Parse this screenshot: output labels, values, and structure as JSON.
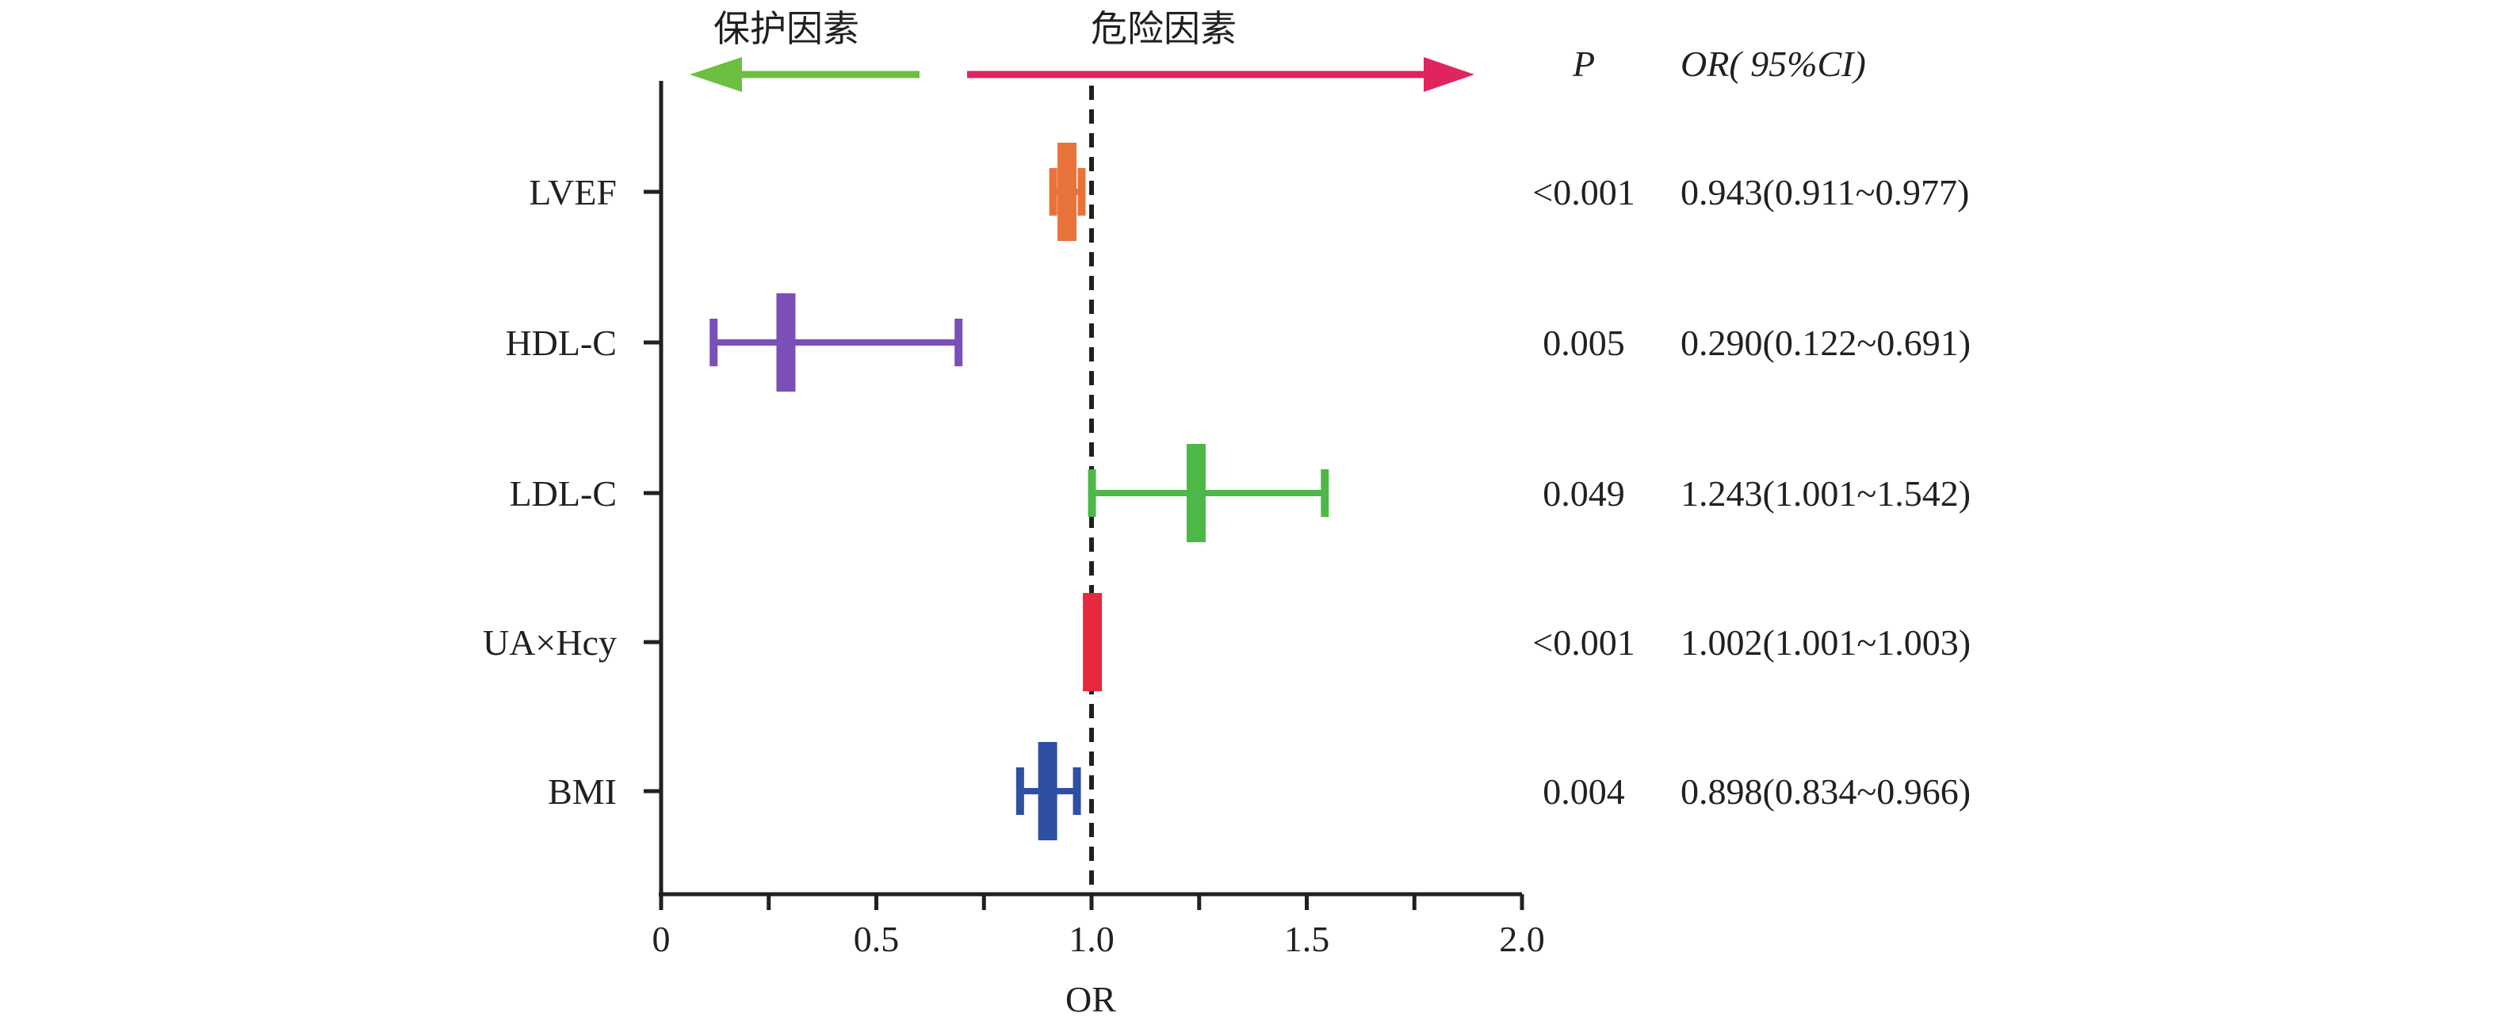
{
  "chart_data": {
    "type": "forest",
    "xlabel": "OR",
    "xlim": [
      0,
      2.0
    ],
    "x_ticks": [
      "0",
      "0.5",
      "1.0",
      "1.5",
      "2.0"
    ],
    "reference_line": 1.0,
    "arrows": {
      "left": {
        "label": "保护因素",
        "color": "#6cbf3f"
      },
      "right": {
        "label": "危险因素",
        "color": "#e0245e"
      }
    },
    "columns": {
      "p": "P",
      "or_ci": "OR( 95%CI)"
    },
    "rows": [
      {
        "label": "LVEF",
        "or": 0.943,
        "lower": 0.911,
        "upper": 0.977,
        "p": "<0.001",
        "or_ci": "0.943(0.911~0.977)",
        "color": "#e8733a"
      },
      {
        "label": "HDL-C",
        "or": 0.29,
        "lower": 0.122,
        "upper": 0.691,
        "p": "0.005",
        "or_ci": "0.290(0.122~0.691)",
        "color": "#7a4fb8"
      },
      {
        "label": "LDL-C",
        "or": 1.243,
        "lower": 1.001,
        "upper": 1.542,
        "p": "0.049",
        "or_ci": "1.243(1.001~1.542)",
        "color": "#4cb848"
      },
      {
        "label": "UA×Hcy",
        "or": 1.002,
        "lower": 1.001,
        "upper": 1.003,
        "p": "<0.001",
        "or_ci": "1.002(1.001~1.003)",
        "color": "#e8283c"
      },
      {
        "label": "BMI",
        "or": 0.898,
        "lower": 0.834,
        "upper": 0.966,
        "p": "0.004",
        "or_ci": "0.898(0.834~0.966)",
        "color": "#2f4fa2"
      }
    ]
  }
}
